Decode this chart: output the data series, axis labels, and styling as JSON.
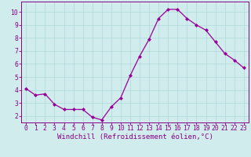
{
  "x": [
    0,
    1,
    2,
    3,
    4,
    5,
    6,
    7,
    8,
    9,
    10,
    11,
    12,
    13,
    14,
    15,
    16,
    17,
    18,
    19,
    20,
    21,
    22,
    23
  ],
  "y": [
    4.1,
    3.6,
    3.7,
    2.9,
    2.5,
    2.5,
    2.5,
    1.9,
    1.7,
    2.7,
    3.4,
    5.1,
    6.6,
    7.9,
    9.5,
    10.2,
    10.2,
    9.5,
    9.0,
    8.6,
    7.7,
    6.8,
    6.3,
    5.7
  ],
  "line_color": "#990099",
  "marker": "D",
  "marker_size": 2,
  "linewidth": 0.9,
  "xlabel": "Windchill (Refroidissement éolien,°C)",
  "xlabel_fontsize": 6.5,
  "xlim": [
    -0.5,
    23.5
  ],
  "ylim": [
    1.5,
    10.8
  ],
  "yticks": [
    2,
    3,
    4,
    5,
    6,
    7,
    8,
    9,
    10
  ],
  "xticks": [
    0,
    1,
    2,
    3,
    4,
    5,
    6,
    7,
    8,
    9,
    10,
    11,
    12,
    13,
    14,
    15,
    16,
    17,
    18,
    19,
    20,
    21,
    22,
    23
  ],
  "grid_color": "#b0d8d8",
  "bg_color": "#d0ecec",
  "tick_color": "#880088",
  "tick_fontsize": 5.8,
  "axis_label_color": "#880088",
  "spine_color": "#880088"
}
